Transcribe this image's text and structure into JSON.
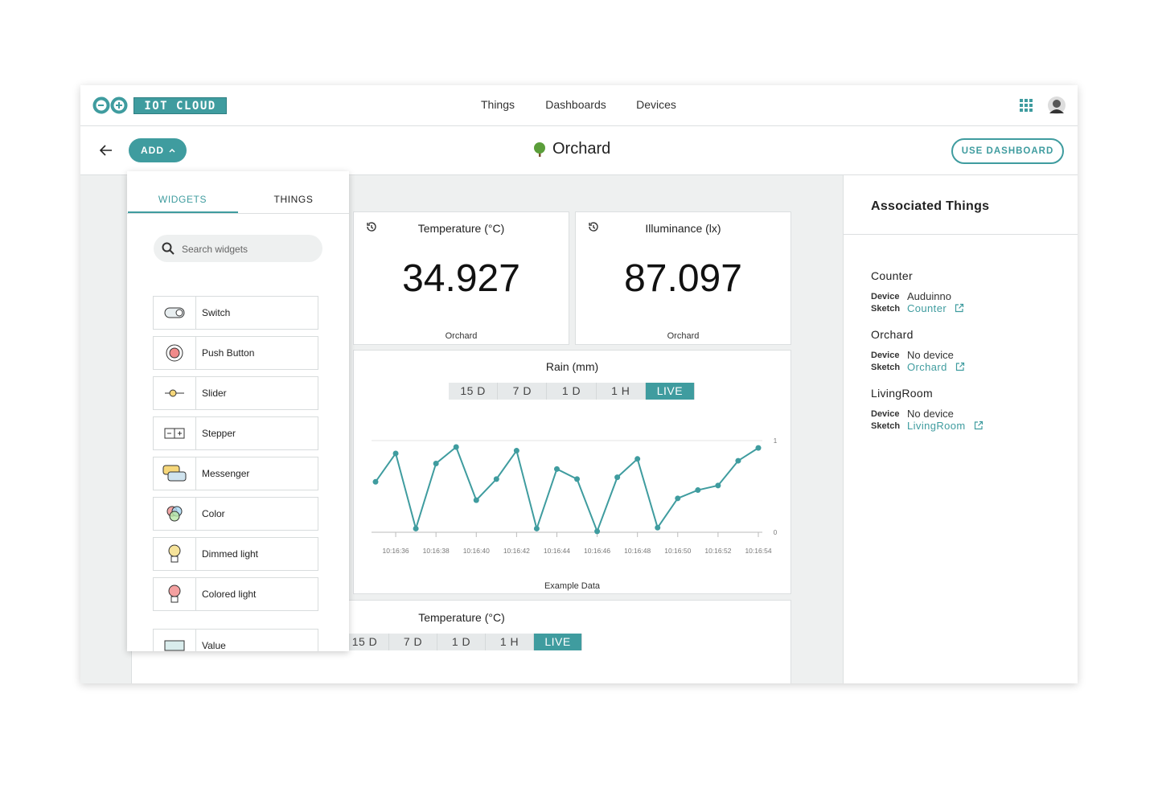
{
  "header": {
    "logo": "IOT CLOUD",
    "nav": [
      "Things",
      "Dashboards",
      "Devices"
    ]
  },
  "toolbar": {
    "add": "ADD",
    "title": "Orchard",
    "use_dashboard": "USE DASHBOARD"
  },
  "panel": {
    "tabs": [
      "WIDGETS",
      "THINGS"
    ],
    "search": "Search widgets",
    "widgets": [
      "Switch",
      "Push Button",
      "Slider",
      "Stepper",
      "Messenger",
      "Color",
      "Dimmed light",
      "Colored light",
      "Value"
    ]
  },
  "cards": [
    {
      "title": "Temperature (°C)",
      "value": 34.927,
      "footer": "Orchard"
    },
    {
      "title": "Illuminance (lx)",
      "value": 87.097,
      "footer": "Orchard"
    }
  ],
  "rain_chart": {
    "type": "line",
    "title": "Rain (mm)",
    "ranges": [
      "15 D",
      "7 D",
      "1 D",
      "1 H",
      "LIVE"
    ],
    "active_range": 4,
    "categories": [
      null,
      "10:16:36",
      null,
      "10:16:38",
      null,
      "10:16:40",
      null,
      "10:16:42",
      null,
      "10:16:44",
      null,
      "10:16:46",
      null,
      "10:16:48",
      null,
      "10:16:50",
      null,
      "10:16:52",
      null,
      "10:16:54"
    ],
    "values": [
      0.55,
      0.86,
      0.04,
      0.75,
      0.93,
      0.35,
      0.58,
      0.89,
      0.04,
      0.69,
      0.58,
      0.01,
      0.6,
      0.8,
      0.05,
      0.37,
      0.46,
      0.51,
      0.78,
      0.92
    ],
    "color": "#3f9c9f",
    "ylim": [
      0,
      1
    ],
    "yticks": [
      0,
      1
    ],
    "footer": "Example Data"
  },
  "temp_chart": {
    "title": "Temperature (°C)",
    "ranges": [
      "15 D",
      "7 D",
      "1 D",
      "1 H",
      "LIVE"
    ],
    "active_range": 4
  },
  "associated": {
    "title": "Associated Things",
    "things": [
      {
        "name": "Counter",
        "device_label": "Device",
        "device": "Auduinno",
        "sketch_label": "Sketch",
        "sketch": "Counter"
      },
      {
        "name": "Orchard",
        "device_label": "Device",
        "device": "No device",
        "sketch_label": "Sketch",
        "sketch": "Orchard"
      },
      {
        "name": "LivingRoom",
        "device_label": "Device",
        "device": "No device",
        "sketch_label": "Sketch",
        "sketch": "LivingRoom"
      }
    ]
  }
}
